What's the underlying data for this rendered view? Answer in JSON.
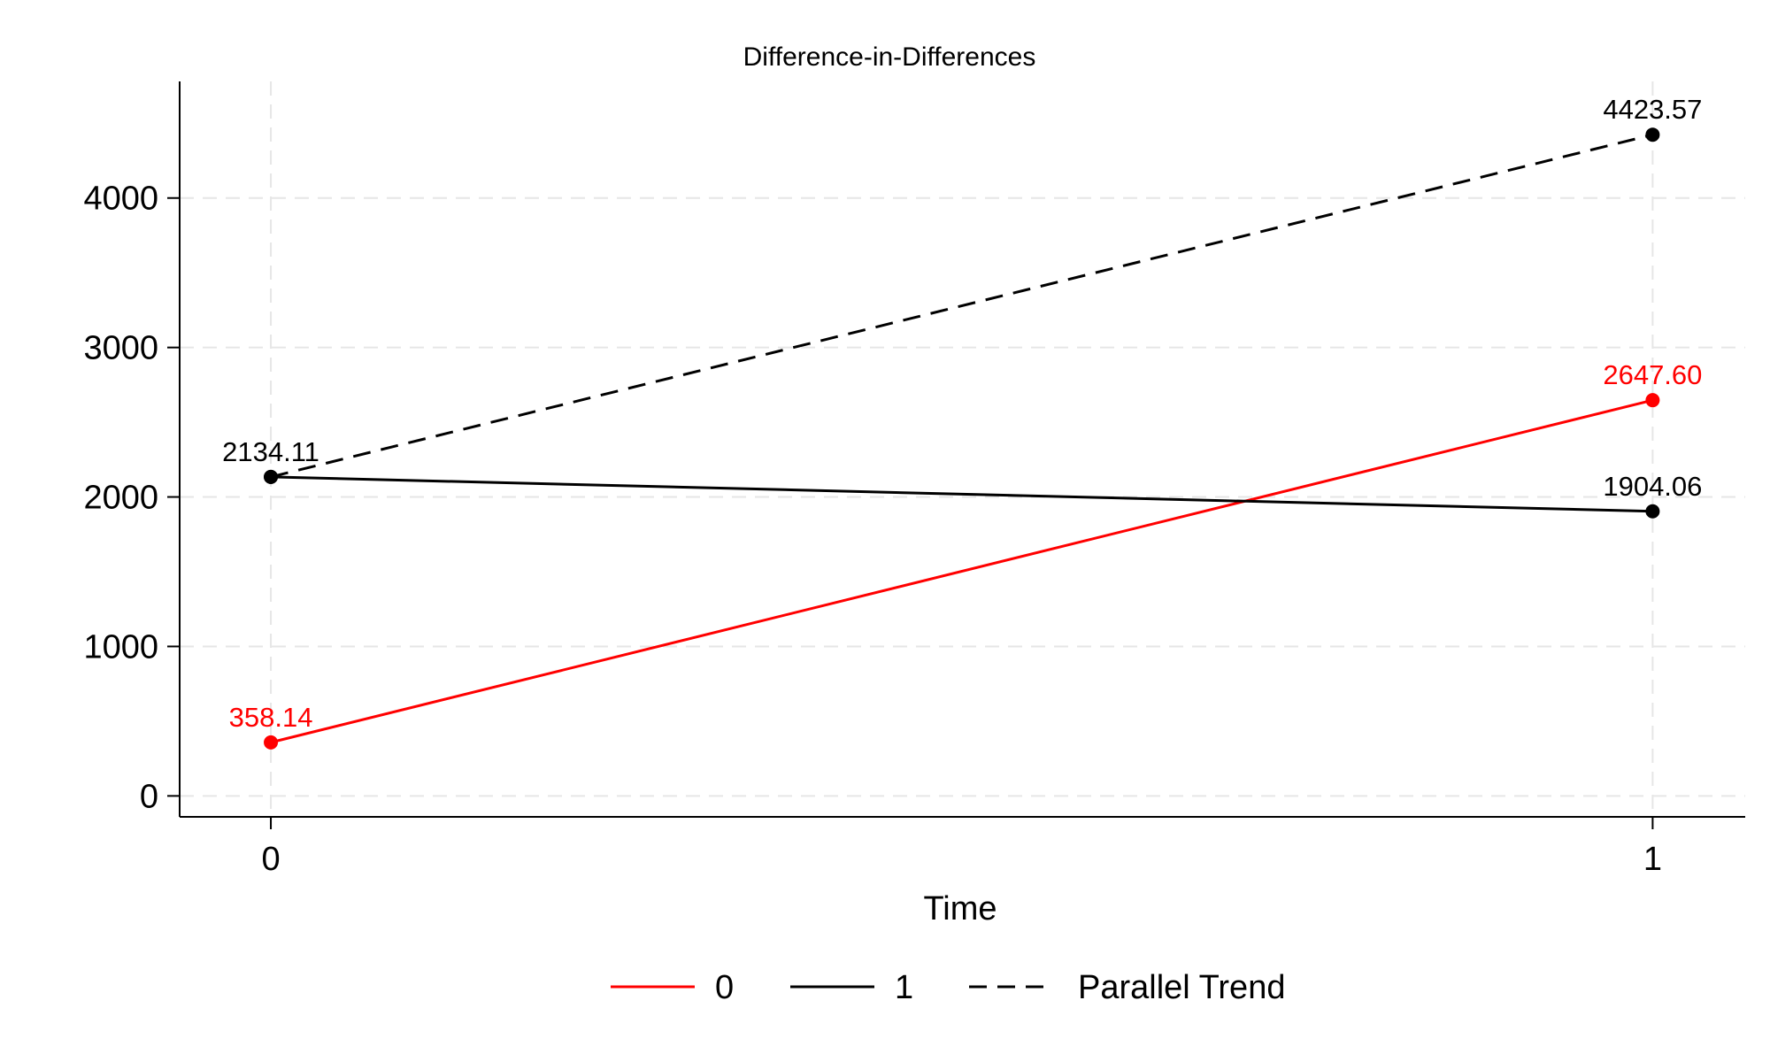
{
  "chart_data": {
    "type": "line",
    "title": "Difference-in-Differences",
    "xlabel": "Time",
    "ylabel": "",
    "x": [
      0,
      1
    ],
    "x_ticks": [
      0,
      1
    ],
    "x_tick_labels": [
      "0",
      "1"
    ],
    "xlim": [
      -0.066,
      1.067
    ],
    "y_ticks": [
      0,
      1000,
      2000,
      3000,
      4000
    ],
    "y_tick_labels": [
      "0",
      "1000",
      "2000",
      "3000",
      "4000"
    ],
    "ylim": [
      -140,
      4780
    ],
    "grid": true,
    "legend_position": "bottom",
    "series": [
      {
        "name": "0",
        "values": [
          358.14,
          2647.6
        ],
        "labels": [
          "358.14",
          "2647.60"
        ],
        "color": "#ff0000",
        "line_style": "solid",
        "label_color": "#ff0000"
      },
      {
        "name": "1",
        "values": [
          2134.11,
          1904.06
        ],
        "labels": [
          "2134.11",
          "1904.06"
        ],
        "color": "#000000",
        "line_style": "solid",
        "label_color": "#000000"
      },
      {
        "name": "Parallel Trend",
        "values": [
          2134.11,
          4423.57
        ],
        "labels": [
          "",
          "4423.57"
        ],
        "color": "#000000",
        "line_style": "dashed",
        "label_color": "#000000"
      }
    ]
  }
}
